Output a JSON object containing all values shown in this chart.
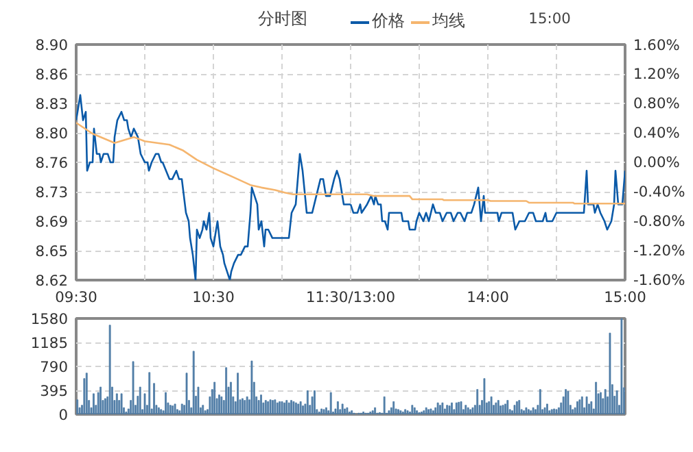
{
  "chart_data": [
    {
      "type": "line",
      "title": "分时图",
      "legend": "top",
      "grid": true,
      "xlim": [
        9.5,
        11.5
      ],
      "xticks": [
        {
          "value": 9.5,
          "label": "09:30"
        },
        {
          "value": 10,
          "label": null
        },
        {
          "value": 10.5,
          "label": "10:30"
        },
        {
          "value": 11,
          "label": null
        },
        {
          "value": 11.5,
          "label": "11:30/13:00"
        }
      ],
      "ylim": [
        8.62,
        8.9
      ],
      "yticks": [
        {
          "value": 8.62,
          "label": "8.62"
        },
        {
          "value": 8.655,
          "label": "8.65"
        },
        {
          "value": 8.69,
          "label": "8.69"
        },
        {
          "value": 8.725,
          "label": "8.73"
        },
        {
          "value": 8.76,
          "label": "8.76"
        },
        {
          "value": 8.795,
          "label": "8.80"
        },
        {
          "value": 8.83,
          "label": "8.83"
        },
        {
          "value": 8.865,
          "label": "8.86"
        },
        {
          "value": 8.9,
          "label": "8.90"
        }
      ],
      "series": [
        {
          "name": "价格",
          "color": "#0b5aa8",
          "x": [
            9.5,
            9.52,
            9.53,
            9.55,
            9.57,
            9.58,
            9.6,
            9.62,
            9.63,
            9.65,
            9.67,
            9.68,
            9.7,
            9.73,
            9.75,
            9.77,
            9.78,
            9.8,
            9.83,
            9.85,
            9.87,
            9.88,
            9.9,
            9.92,
            9.95,
            9.97,
            10,
            10.02,
            10.03,
            10.05,
            10.08,
            10.1,
            10.12,
            10.13,
            10.18,
            10.2,
            10.23,
            10.25,
            10.27,
            10.3,
            10.32,
            10.33,
            10.35,
            10.37,
            10.38,
            10.4,
            10.42,
            10.43,
            10.45,
            10.47,
            10.48,
            10.5,
            10.52,
            10.53,
            10.55,
            10.57,
            10.58,
            10.62,
            10.63,
            10.65,
            10.68,
            10.7,
            10.73,
            10.75,
            10.77,
            10.78,
            10.8,
            10.82,
            10.83,
            10.85,
            10.87,
            10.88,
            10.9,
            10.93,
            11.05,
            11.07,
            11.1,
            11.12,
            11.13,
            11.15,
            11.18,
            11.22,
            11.25,
            11.28,
            11.3,
            11.32,
            11.35,
            11.38,
            11.4,
            11.42,
            11.45,
            11.5
          ],
          "values": [
            8.81,
            8.83,
            8.84,
            8.81,
            8.82,
            8.75,
            8.76,
            8.76,
            8.8,
            8.77,
            8.77,
            8.76,
            8.77,
            8.77,
            8.76,
            8.76,
            8.79,
            8.81,
            8.82,
            8.81,
            8.81,
            8.8,
            8.79,
            8.8,
            8.79,
            8.77,
            8.76,
            8.76,
            8.75,
            8.76,
            8.77,
            8.77,
            8.76,
            8.76,
            8.74,
            8.74,
            8.75,
            8.74,
            8.74,
            8.7,
            8.69,
            8.67,
            8.65,
            8.62,
            8.68,
            8.67,
            8.68,
            8.69,
            8.68,
            8.7,
            8.67,
            8.66,
            8.68,
            8.69,
            8.66,
            8.65,
            8.64,
            8.62,
            8.63,
            8.64,
            8.65,
            8.65,
            8.66,
            8.66,
            8.7,
            8.73,
            8.72,
            8.71,
            8.68,
            8.69,
            8.66,
            8.68,
            8.68,
            8.67,
            8.67,
            8.7,
            8.71,
            8.75,
            8.77,
            8.75,
            8.7,
            8.7,
            8.72,
            8.74,
            8.74,
            8.72,
            8.72,
            8.74,
            8.75,
            8.74,
            8.71,
            8.71
          ]
        },
        {
          "name": "均线",
          "color": "#f5b56e",
          "x": [
            9.5,
            9.62,
            9.78,
            9.92,
            10,
            10.18,
            10.28,
            10.38,
            10.5,
            10.65,
            10.77,
            10.85,
            10.95,
            11.02,
            11.08,
            11.5
          ],
          "values": [
            8.807,
            8.794,
            8.783,
            8.79,
            8.785,
            8.781,
            8.774,
            8.763,
            8.753,
            8.742,
            8.733,
            8.73,
            8.727,
            8.724,
            8.722,
            8.722
          ]
        }
      ]
    },
    {
      "type": "line",
      "annotations": [
        "15:00"
      ],
      "grid": true,
      "tick_labels": "x",
      "xlim": [
        13,
        15
      ],
      "xticks": [
        {
          "value": 13,
          "label": null
        },
        {
          "value": 13.5,
          "label": null
        },
        {
          "value": 14,
          "label": "14:00"
        },
        {
          "value": 14.5,
          "label": null
        },
        {
          "value": 15,
          "label": "15:00"
        }
      ],
      "ylim": [
        8.62,
        8.9
      ],
      "yticks": [
        8.62,
        8.655,
        8.69,
        8.725,
        8.76,
        8.795,
        8.83,
        8.865,
        8.9
      ],
      "y2lim": [
        -1.6,
        1.6
      ],
      "y2ticks": [
        {
          "value": -1.6,
          "label": "-1.60%"
        },
        {
          "value": -1.2,
          "label": "-1.20%"
        },
        {
          "value": -0.8,
          "label": "-0.80%"
        },
        {
          "value": -0.4,
          "label": "-0.40%"
        },
        {
          "value": 0,
          "label": "0.00%"
        },
        {
          "value": 0.4,
          "label": "0.40%"
        },
        {
          "value": 0.8,
          "label": "0.80%"
        },
        {
          "value": 1.2,
          "label": "1.20%"
        },
        {
          "value": 1.6,
          "label": "1.60%"
        }
      ],
      "series": [
        {
          "color": "#0b5aa8",
          "x": [
            13,
            13.02,
            13.05,
            13.07,
            13.08,
            13.12,
            13.15,
            13.17,
            13.18,
            13.2,
            13.22,
            13.23,
            13.25,
            13.27,
            13.28,
            13.37,
            13.38,
            13.42,
            13.43,
            13.47,
            13.48,
            13.5,
            13.53,
            13.55,
            13.57,
            13.6,
            13.62,
            13.65,
            13.67,
            13.7,
            13.73,
            13.75,
            13.78,
            13.8,
            13.83,
            13.85,
            13.88,
            13.9,
            13.93,
            13.95,
            13.97,
            13.98,
            14.07,
            14.08,
            14.1,
            14.18,
            14.2,
            14.23,
            14.27,
            14.3,
            14.33,
            14.35,
            14.4,
            14.42,
            14.43,
            14.47,
            14.5,
            14.7,
            14.72,
            14.73,
            14.77,
            14.78,
            14.8,
            14.82,
            14.85,
            14.87,
            14.9,
            14.92,
            14.93,
            14.95,
            14.98,
            15
          ],
          "values": [
            8.71,
            8.7,
            8.7,
            8.71,
            8.7,
            8.71,
            8.72,
            8.71,
            8.72,
            8.71,
            8.71,
            8.69,
            8.69,
            8.68,
            8.7,
            8.7,
            8.69,
            8.69,
            8.68,
            8.68,
            8.69,
            8.7,
            8.69,
            8.7,
            8.69,
            8.71,
            8.7,
            8.7,
            8.69,
            8.7,
            8.7,
            8.69,
            8.7,
            8.7,
            8.69,
            8.7,
            8.7,
            8.71,
            8.73,
            8.69,
            8.72,
            8.7,
            8.7,
            8.69,
            8.7,
            8.7,
            8.68,
            8.69,
            8.69,
            8.7,
            8.7,
            8.69,
            8.69,
            8.7,
            8.69,
            8.69,
            8.7,
            8.7,
            8.75,
            8.71,
            8.71,
            8.7,
            8.71,
            8.7,
            8.69,
            8.68,
            8.69,
            8.71,
            8.75,
            8.71,
            8.71,
            8.75
          ]
        },
        {
          "color": "#f5b56e",
          "x": [
            13,
            13.12,
            13.17,
            13.43,
            13.45,
            13.67,
            13.68,
            14,
            14.02,
            14.28,
            14.3,
            14.62,
            14.63,
            15
          ],
          "values": [
            8.722,
            8.722,
            8.72,
            8.72,
            8.716,
            8.716,
            8.715,
            8.715,
            8.714,
            8.714,
            8.712,
            8.712,
            8.711,
            8.711
          ]
        }
      ]
    },
    {
      "type": "bar",
      "grid": "y",
      "tick_labels": "y",
      "color": "#4f7ca6",
      "categories": [
        null,
        null,
        null,
        null,
        null,
        null,
        null,
        null,
        null,
        null,
        null,
        null,
        null,
        null,
        null,
        null,
        null,
        null,
        null,
        null,
        null,
        null,
        null,
        null,
        null,
        null,
        null,
        null,
        null,
        null,
        null,
        null,
        null,
        null,
        null,
        null,
        null,
        null,
        null,
        null,
        null,
        null,
        null,
        null,
        null,
        null,
        null,
        null,
        null,
        null,
        null,
        null,
        null,
        null,
        null,
        null,
        null,
        null,
        null,
        null,
        null,
        null,
        null,
        null,
        null,
        null,
        null,
        null,
        null,
        null,
        null,
        null,
        null,
        null,
        null,
        null,
        null,
        null,
        null,
        null,
        null,
        null,
        null,
        null,
        null,
        null,
        null,
        null,
        null,
        null,
        null,
        null,
        null,
        null,
        null,
        null,
        null,
        null,
        null,
        null,
        null,
        null,
        null,
        null,
        null,
        null,
        null,
        null,
        null,
        null,
        null,
        null,
        null,
        null,
        null,
        null,
        null,
        null,
        null,
        null,
        null,
        null,
        null,
        null,
        null,
        null,
        null,
        null,
        null,
        null,
        null,
        null,
        null,
        null,
        null,
        null,
        null,
        null,
        null,
        null,
        null,
        null,
        null,
        null,
        null,
        null,
        null,
        null,
        null,
        null,
        null,
        null,
        null,
        null,
        null,
        null,
        null,
        null,
        null,
        null,
        null,
        null,
        null,
        null,
        null,
        null,
        null,
        null,
        null,
        null,
        null,
        null,
        null,
        null,
        null,
        null,
        null,
        null,
        null,
        null,
        null,
        null,
        null,
        null,
        null,
        null,
        null,
        null,
        null,
        null,
        null,
        null,
        null,
        null,
        null,
        null,
        null,
        null,
        null,
        null,
        null,
        null,
        null,
        null,
        null,
        null,
        null,
        null,
        null,
        null,
        null,
        null,
        null,
        null,
        null,
        null,
        null,
        null,
        null,
        null,
        null,
        null,
        null,
        null,
        null,
        null,
        null,
        null,
        null,
        null,
        null,
        null,
        null,
        null,
        null,
        null
      ],
      "ylim": [
        0,
        1580
      ],
      "yticks": [
        0,
        395,
        790,
        1185,
        1580
      ],
      "values": [
        240,
        110,
        150,
        590,
        680,
        230,
        110,
        340,
        150,
        360,
        450,
        230,
        260,
        290,
        1470,
        450,
        230,
        340,
        230,
        340,
        110,
        40,
        90,
        230,
        870,
        150,
        300,
        450,
        80,
        340,
        150,
        690,
        90,
        510,
        150,
        110,
        80,
        60,
        360,
        190,
        150,
        140,
        170,
        80,
        60,
        170,
        150,
        680,
        230,
        110,
        1040,
        300,
        450,
        110,
        150,
        60,
        80,
        290,
        410,
        530,
        260,
        320,
        290,
        230,
        770,
        450,
        530,
        290,
        210,
        680,
        240,
        260,
        230,
        290,
        240,
        880,
        530,
        290,
        230,
        320,
        190,
        230,
        210,
        240,
        230,
        240,
        190,
        210,
        210,
        190,
        230,
        190,
        230,
        210,
        190,
        170,
        210,
        140,
        170,
        390,
        150,
        290,
        390,
        80,
        40,
        90,
        80,
        110,
        60,
        360,
        40,
        90,
        210,
        80,
        170,
        90,
        110,
        40,
        60,
        20,
        0,
        20,
        20,
        40,
        20,
        20,
        40,
        60,
        110,
        20,
        30,
        20,
        290,
        20,
        60,
        110,
        210,
        90,
        80,
        60,
        40,
        80,
        60,
        40,
        150,
        110,
        60,
        30,
        40,
        60,
        110,
        80,
        90,
        60,
        110,
        190,
        150,
        190,
        90,
        150,
        140,
        190,
        80,
        190,
        200,
        210,
        80,
        150,
        110,
        80,
        110,
        150,
        410,
        150,
        230,
        590,
        190,
        210,
        290,
        150,
        190,
        230,
        140,
        150,
        170,
        230,
        80,
        60,
        150,
        210,
        230,
        80,
        60,
        110,
        80,
        60,
        110,
        80,
        150,
        410,
        80,
        110,
        170,
        60,
        80,
        90,
        80,
        110,
        190,
        290,
        410,
        380,
        150,
        80,
        110,
        210,
        240,
        290,
        110,
        290,
        170,
        210,
        90,
        530,
        340,
        360,
        260,
        410,
        290,
        1340,
        490,
        300,
        390,
        150,
        1580,
        440
      ]
    }
  ]
}
